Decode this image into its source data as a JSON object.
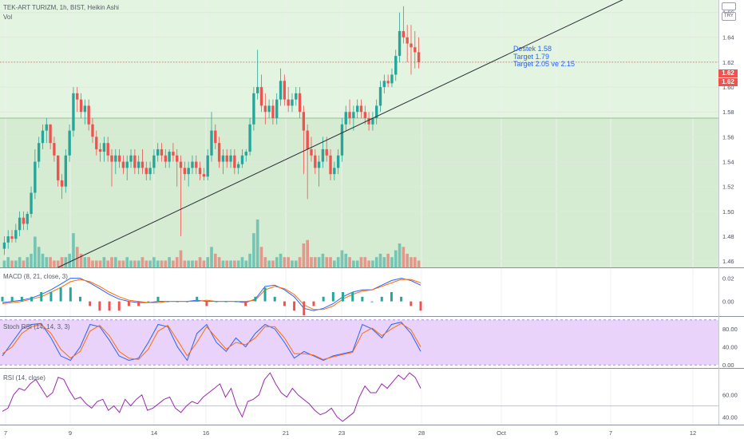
{
  "header": {
    "symbol_line": "TEK-ART TURIZM, 1h, BIST, Heikin Ashi",
    "volume_label": "Vol",
    "currency": "TRY"
  },
  "annotation": {
    "line1": "Destek 1.58",
    "line2": "Target 1.79",
    "line3": "Target 2.05 ve 2.15"
  },
  "price_tags": {
    "last": "1.62",
    "prev": "1.62"
  },
  "indicators": {
    "macd_label": "MACD (8, 21, close, 3)",
    "stoch_label": "Stoch RSI (14, 14, 3, 3)",
    "rsi_label": "RSI (14, close)"
  },
  "colors": {
    "up": "#26a69a",
    "down": "#ef5350",
    "zone": "#e3f4e0",
    "stoch_band": "#e9d3fb",
    "rsi_line": "#9c27b0",
    "macd_line": "#2962ff",
    "signal_line": "#ff6d00"
  },
  "chart_data": [
    {
      "type": "candlestick",
      "title": "TEK-ART TURIZM, 1h, BIST, Heikin Ashi",
      "x_tick_labels": [
        "7",
        "9",
        "14",
        "16",
        "21",
        "23",
        "28",
        "Oct",
        "5",
        "7",
        "12"
      ],
      "y_tick_labels": [
        "1.46",
        "1.48",
        "1.50",
        "1.52",
        "1.54",
        "1.56",
        "1.58",
        "1.60",
        "1.62",
        "1.64",
        "1.66"
      ],
      "ylim": [
        1.455,
        1.67
      ],
      "support_level": 1.575,
      "last_price": 1.62,
      "trendline": {
        "from": {
          "bar": 14,
          "price": 1.455
        },
        "to": {
          "bar": 120,
          "price": 1.61
        }
      },
      "candles_ohlc": [
        [
          1.47,
          1.48,
          1.465,
          1.475
        ],
        [
          1.475,
          1.485,
          1.47,
          1.48
        ],
        [
          1.48,
          1.485,
          1.475,
          1.478
        ],
        [
          1.478,
          1.49,
          1.475,
          1.485
        ],
        [
          1.485,
          1.5,
          1.48,
          1.495
        ],
        [
          1.495,
          1.5,
          1.485,
          1.49
        ],
        [
          1.49,
          1.5,
          1.485,
          1.498
        ],
        [
          1.498,
          1.52,
          1.495,
          1.515
        ],
        [
          1.515,
          1.55,
          1.51,
          1.54
        ],
        [
          1.54,
          1.56,
          1.535,
          1.555
        ],
        [
          1.555,
          1.57,
          1.55,
          1.565
        ],
        [
          1.565,
          1.575,
          1.555,
          1.57
        ],
        [
          1.57,
          1.57,
          1.55,
          1.555
        ],
        [
          1.555,
          1.56,
          1.54,
          1.545
        ],
        [
          1.545,
          1.545,
          1.52,
          1.525
        ],
        [
          1.525,
          1.53,
          1.51,
          1.52
        ],
        [
          1.52,
          1.55,
          1.515,
          1.545
        ],
        [
          1.545,
          1.57,
          1.54,
          1.565
        ],
        [
          1.565,
          1.6,
          1.56,
          1.595
        ],
        [
          1.595,
          1.6,
          1.58,
          1.59
        ],
        [
          1.59,
          1.595,
          1.575,
          1.58
        ],
        [
          1.58,
          1.59,
          1.57,
          1.585
        ],
        [
          1.585,
          1.59,
          1.565,
          1.57
        ],
        [
          1.57,
          1.575,
          1.555,
          1.56
        ],
        [
          1.56,
          1.565,
          1.545,
          1.55
        ],
        [
          1.55,
          1.555,
          1.54,
          1.548
        ],
        [
          1.548,
          1.56,
          1.54,
          1.555
        ],
        [
          1.555,
          1.56,
          1.54,
          1.545
        ],
        [
          1.545,
          1.55,
          1.52,
          1.54
        ],
        [
          1.54,
          1.55,
          1.53,
          1.545
        ],
        [
          1.545,
          1.55,
          1.535,
          1.54
        ],
        [
          1.54,
          1.545,
          1.53,
          1.535
        ],
        [
          1.535,
          1.545,
          1.525,
          1.54
        ],
        [
          1.54,
          1.55,
          1.535,
          1.545
        ],
        [
          1.545,
          1.55,
          1.53,
          1.535
        ],
        [
          1.535,
          1.545,
          1.53,
          1.54
        ],
        [
          1.54,
          1.55,
          1.53,
          1.535
        ],
        [
          1.535,
          1.54,
          1.525,
          1.53
        ],
        [
          1.53,
          1.54,
          1.525,
          1.535
        ],
        [
          1.535,
          1.55,
          1.53,
          1.545
        ],
        [
          1.545,
          1.555,
          1.54,
          1.55
        ],
        [
          1.55,
          1.555,
          1.54,
          1.545
        ],
        [
          1.545,
          1.55,
          1.535,
          1.54
        ],
        [
          1.54,
          1.55,
          1.535,
          1.548
        ],
        [
          1.548,
          1.555,
          1.54,
          1.545
        ],
        [
          1.545,
          1.55,
          1.52,
          1.54
        ],
        [
          1.54,
          1.545,
          1.48,
          1.535
        ],
        [
          1.535,
          1.54,
          1.525,
          1.53
        ],
        [
          1.53,
          1.54,
          1.52,
          1.535
        ],
        [
          1.535,
          1.545,
          1.53,
          1.54
        ],
        [
          1.54,
          1.545,
          1.53,
          1.535
        ],
        [
          1.535,
          1.54,
          1.525,
          1.53
        ],
        [
          1.53,
          1.535,
          1.525,
          1.528
        ],
        [
          1.528,
          1.55,
          1.525,
          1.545
        ],
        [
          1.545,
          1.58,
          1.54,
          1.565
        ],
        [
          1.565,
          1.57,
          1.55,
          1.555
        ],
        [
          1.555,
          1.56,
          1.535,
          1.54
        ],
        [
          1.54,
          1.55,
          1.53,
          1.545
        ],
        [
          1.545,
          1.55,
          1.535,
          1.54
        ],
        [
          1.54,
          1.55,
          1.535,
          1.545
        ],
        [
          1.545,
          1.55,
          1.53,
          1.535
        ],
        [
          1.535,
          1.54,
          1.53,
          1.538
        ],
        [
          1.538,
          1.55,
          1.535,
          1.545
        ],
        [
          1.545,
          1.55,
          1.54,
          1.548
        ],
        [
          1.548,
          1.575,
          1.545,
          1.57
        ],
        [
          1.57,
          1.6,
          1.565,
          1.595
        ],
        [
          1.595,
          1.63,
          1.59,
          1.6
        ],
        [
          1.6,
          1.61,
          1.58,
          1.585
        ],
        [
          1.585,
          1.595,
          1.57,
          1.58
        ],
        [
          1.58,
          1.59,
          1.575,
          1.585
        ],
        [
          1.585,
          1.59,
          1.57,
          1.575
        ],
        [
          1.575,
          1.595,
          1.57,
          1.59
        ],
        [
          1.59,
          1.615,
          1.585,
          1.605
        ],
        [
          1.605,
          1.61,
          1.585,
          1.59
        ],
        [
          1.59,
          1.6,
          1.58,
          1.585
        ],
        [
          1.585,
          1.595,
          1.58,
          1.59
        ],
        [
          1.59,
          1.6,
          1.585,
          1.595
        ],
        [
          1.595,
          1.6,
          1.575,
          1.58
        ],
        [
          1.58,
          1.585,
          1.53,
          1.565
        ],
        [
          1.565,
          1.57,
          1.51,
          1.55
        ],
        [
          1.55,
          1.56,
          1.54,
          1.545
        ],
        [
          1.545,
          1.55,
          1.53,
          1.535
        ],
        [
          1.535,
          1.545,
          1.52,
          1.54
        ],
        [
          1.54,
          1.56,
          1.535,
          1.55
        ],
        [
          1.55,
          1.56,
          1.54,
          1.545
        ],
        [
          1.545,
          1.55,
          1.525,
          1.53
        ],
        [
          1.53,
          1.54,
          1.525,
          1.535
        ],
        [
          1.535,
          1.55,
          1.53,
          1.545
        ],
        [
          1.545,
          1.575,
          1.54,
          1.57
        ],
        [
          1.57,
          1.585,
          1.565,
          1.58
        ],
        [
          1.58,
          1.59,
          1.57,
          1.575
        ],
        [
          1.575,
          1.585,
          1.565,
          1.58
        ],
        [
          1.58,
          1.59,
          1.575,
          1.585
        ],
        [
          1.585,
          1.59,
          1.575,
          1.58
        ],
        [
          1.58,
          1.585,
          1.57,
          1.575
        ],
        [
          1.575,
          1.58,
          1.565,
          1.57
        ],
        [
          1.57,
          1.58,
          1.565,
          1.575
        ],
        [
          1.575,
          1.59,
          1.57,
          1.585
        ],
        [
          1.585,
          1.605,
          1.58,
          1.6
        ],
        [
          1.6,
          1.61,
          1.595,
          1.605
        ],
        [
          1.605,
          1.61,
          1.6,
          1.603
        ],
        [
          1.603,
          1.615,
          1.6,
          1.61
        ],
        [
          1.61,
          1.63,
          1.605,
          1.625
        ],
        [
          1.625,
          1.66,
          1.62,
          1.645
        ],
        [
          1.645,
          1.665,
          1.635,
          1.64
        ],
        [
          1.64,
          1.65,
          1.62,
          1.635
        ],
        [
          1.635,
          1.65,
          1.61,
          1.632
        ],
        [
          1.632,
          1.645,
          1.615,
          1.628
        ],
        [
          1.628,
          1.64,
          1.615,
          1.62
        ]
      ],
      "volumes": [
        2,
        3,
        2,
        2,
        3,
        2,
        3,
        4,
        9,
        6,
        4,
        3,
        3,
        2,
        2,
        3,
        3,
        4,
        10,
        6,
        4,
        3,
        3,
        2,
        2,
        2,
        3,
        2,
        3,
        3,
        2,
        2,
        3,
        2,
        2,
        2,
        3,
        2,
        2,
        3,
        2,
        2,
        2,
        3,
        2,
        3,
        5,
        2,
        2,
        2,
        2,
        3,
        2,
        3,
        6,
        4,
        3,
        2,
        2,
        2,
        2,
        2,
        3,
        2,
        4,
        10,
        14,
        6,
        3,
        2,
        2,
        3,
        4,
        3,
        3,
        2,
        2,
        3,
        7,
        8,
        3,
        3,
        3,
        4,
        3,
        3,
        2,
        3,
        5,
        4,
        3,
        2,
        2,
        3,
        3,
        2,
        2,
        3,
        4,
        3,
        4,
        3,
        5,
        7,
        6,
        4,
        3,
        3,
        2
      ]
    },
    {
      "type": "line",
      "title": "MACD (8, 21, close, 3)",
      "y_tick_labels": [
        "0.02",
        "0.00"
      ],
      "ylim": [
        -0.012,
        0.028
      ],
      "series": [
        {
          "name": "MACD",
          "values": [
            -0.001,
            0.0,
            0.001,
            0.003,
            0.006,
            0.01,
            0.015,
            0.02,
            0.02,
            0.016,
            0.011,
            0.006,
            0.002,
            0.0,
            -0.001,
            -0.001,
            0.0,
            0.0,
            0.0,
            0.0,
            0.001,
            0.0,
            0.0,
            0.0,
            0.0,
            -0.001,
            0.002,
            0.013,
            0.014,
            0.01,
            0.004,
            -0.006,
            -0.008,
            -0.006,
            -0.002,
            0.004,
            0.008,
            0.01,
            0.01,
            0.014,
            0.018,
            0.02,
            0.018,
            0.014
          ]
        },
        {
          "name": "Signal",
          "values": [
            -0.002,
            -0.001,
            0.0,
            0.002,
            0.004,
            0.008,
            0.012,
            0.017,
            0.019,
            0.017,
            0.013,
            0.008,
            0.004,
            0.001,
            0.0,
            -0.001,
            -0.001,
            0.0,
            0.0,
            0.0,
            0.0,
            0.001,
            0.0,
            0.0,
            0.0,
            0.0,
            0.001,
            0.01,
            0.013,
            0.011,
            0.006,
            -0.003,
            -0.007,
            -0.007,
            -0.004,
            0.002,
            0.006,
            0.009,
            0.01,
            0.013,
            0.016,
            0.019,
            0.019,
            0.016
          ]
        }
      ]
    },
    {
      "type": "line",
      "title": "Stoch RSI (14, 14, 3, 3)",
      "y_tick_labels": [
        "80.00",
        "40.00",
        "0.00"
      ],
      "ylim": [
        -5,
        105
      ],
      "series": [
        {
          "name": "K",
          "values": [
            20,
            50,
            80,
            90,
            92,
            60,
            20,
            10,
            40,
            90,
            85,
            55,
            20,
            10,
            15,
            50,
            90,
            85,
            40,
            10,
            70,
            90,
            50,
            30,
            60,
            40,
            70,
            90,
            80,
            50,
            15,
            30,
            20,
            10,
            20,
            25,
            30,
            90,
            80,
            60,
            90,
            95,
            70,
            30
          ]
        },
        {
          "name": "D",
          "values": [
            25,
            40,
            70,
            85,
            90,
            70,
            35,
            15,
            30,
            75,
            88,
            65,
            30,
            15,
            12,
            35,
            75,
            88,
            55,
            20,
            50,
            85,
            60,
            35,
            50,
            45,
            60,
            85,
            85,
            60,
            25,
            25,
            22,
            12,
            18,
            23,
            28,
            70,
            82,
            65,
            80,
            92,
            78,
            40
          ]
        }
      ]
    },
    {
      "type": "line",
      "title": "RSI (14, close)",
      "y_tick_labels": [
        "60.00",
        "40.00"
      ],
      "ylim": [
        33,
        83
      ],
      "reference_level": 50,
      "series": [
        {
          "name": "RSI",
          "values": [
            45,
            48,
            60,
            66,
            64,
            70,
            74,
            66,
            58,
            62,
            76,
            74,
            64,
            56,
            58,
            52,
            48,
            54,
            56,
            46,
            50,
            44,
            56,
            50,
            56,
            60,
            46,
            48,
            52,
            56,
            58,
            48,
            44,
            50,
            54,
            52,
            58,
            62,
            66,
            70,
            58,
            66,
            50,
            40,
            54,
            56,
            60,
            74,
            80,
            70,
            62,
            58,
            66,
            60,
            56,
            52,
            46,
            42,
            44,
            48,
            40,
            36,
            40,
            44,
            58,
            68,
            62,
            62,
            70,
            66,
            72,
            78,
            74,
            80,
            76,
            66
          ]
        }
      ]
    }
  ]
}
